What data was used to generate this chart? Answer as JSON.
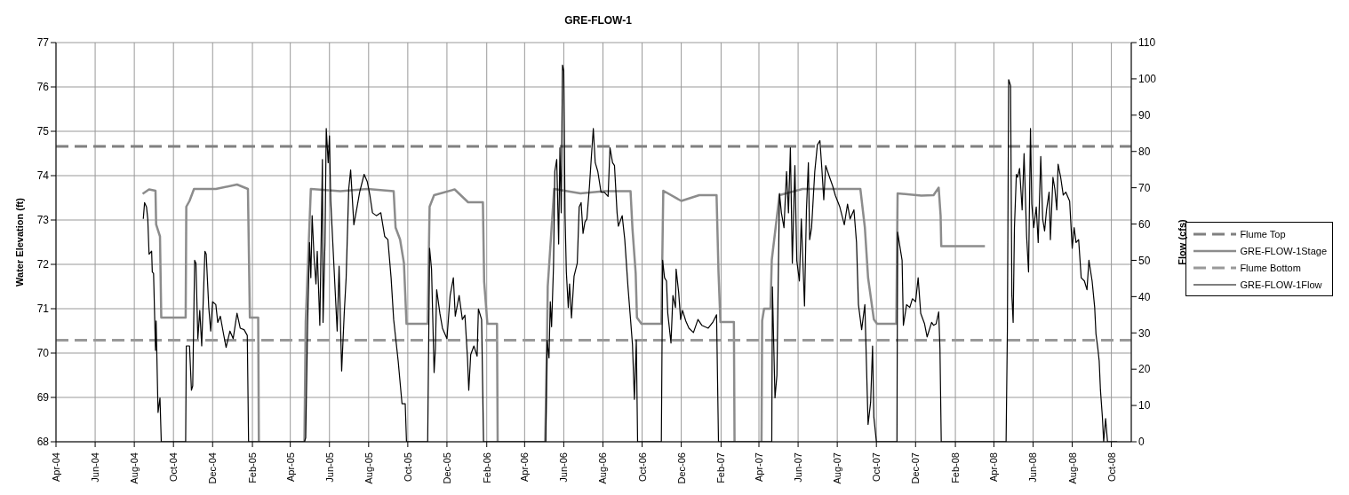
{
  "chart_data": {
    "type": "line",
    "title": "GRE-FLOW-1",
    "ylabel": "Water Elevation (ft)",
    "y2label": "Flow (cfs)",
    "xlim": [
      "2004-04-01",
      "2008-11-01"
    ],
    "xticks": [
      {
        "value": "2004-04",
        "label": "Apr-04"
      },
      {
        "value": "2004-06",
        "label": "Jun-04"
      },
      {
        "value": "2004-08",
        "label": "Aug-04"
      },
      {
        "value": "2004-10",
        "label": "Oct-04"
      },
      {
        "value": "2004-12",
        "label": "Dec-04"
      },
      {
        "value": "2005-02",
        "label": "Feb-05"
      },
      {
        "value": "2005-04",
        "label": "Apr-05"
      },
      {
        "value": "2005-06",
        "label": "Jun-05"
      },
      {
        "value": "2005-08",
        "label": "Aug-05"
      },
      {
        "value": "2005-10",
        "label": "Oct-05"
      },
      {
        "value": "2005-12",
        "label": "Dec-05"
      },
      {
        "value": "2006-02",
        "label": "Feb-06"
      },
      {
        "value": "2006-04",
        "label": "Apr-06"
      },
      {
        "value": "2006-06",
        "label": "Jun-06"
      },
      {
        "value": "2006-08",
        "label": "Aug-06"
      },
      {
        "value": "2006-10",
        "label": "Oct-06"
      },
      {
        "value": "2006-12",
        "label": "Dec-06"
      },
      {
        "value": "2007-02",
        "label": "Feb-07"
      },
      {
        "value": "2007-04",
        "label": "Apr-07"
      },
      {
        "value": "2007-06",
        "label": "Jun-07"
      },
      {
        "value": "2007-08",
        "label": "Aug-07"
      },
      {
        "value": "2007-10",
        "label": "Oct-07"
      },
      {
        "value": "2007-12",
        "label": "Dec-07"
      },
      {
        "value": "2008-02",
        "label": "Feb-08"
      },
      {
        "value": "2008-04",
        "label": "Apr-08"
      },
      {
        "value": "2008-06",
        "label": "Jun-08"
      },
      {
        "value": "2008-08",
        "label": "Aug-08"
      },
      {
        "value": "2008-10",
        "label": "Oct-08"
      }
    ],
    "ylim": [
      68,
      77
    ],
    "yticks": [
      68,
      69,
      70,
      71,
      72,
      73,
      74,
      75,
      76,
      77
    ],
    "y2lim": [
      0,
      110
    ],
    "y2ticks": [
      0,
      10,
      20,
      30,
      40,
      50,
      60,
      70,
      80,
      90,
      100,
      110
    ],
    "grid": true,
    "legend": "right",
    "marker": "none",
    "series": [
      {
        "name": "Flume Top",
        "color": "#808080",
        "line_style": "dashed",
        "x": [
          "2004-04-01",
          "2008-11-01"
        ],
        "values": [
          74.66,
          74.66
        ]
      },
      {
        "name": "GRE-FLOW-1Stage",
        "color": "#8c8c8c",
        "line_style": "solid",
        "x": [
          "2004-08-14",
          "2004-08-24",
          "2004-09-03",
          "2004-09-04",
          "2004-09-10",
          "2004-09-12",
          "2004-10-20",
          "2004-10-21",
          "2004-10-26",
          "2004-11-02",
          "2004-12-06",
          "2005-01-08",
          "2005-01-25",
          "2005-01-28",
          "2005-02-10",
          "2005-02-11",
          "2005-02-12",
          "2005-04-22",
          "2005-04-23",
          "2005-04-25",
          "2005-05-03",
          "2005-06-18",
          "2005-07-30",
          "2005-09-09",
          "2005-09-12",
          "2005-09-19",
          "2005-09-25",
          "2005-09-29",
          "2005-11-01",
          "2005-11-04",
          "2005-11-11",
          "2005-12-13",
          "2006-01-03",
          "2006-01-26",
          "2006-01-28",
          "2006-02-02",
          "2006-02-17",
          "2006-02-18",
          "2006-02-19",
          "2006-05-02",
          "2006-05-03",
          "2006-05-06",
          "2006-05-07",
          "2006-05-12",
          "2006-05-17",
          "2006-06-27",
          "2006-08-03",
          "2006-09-13",
          "2006-09-16",
          "2006-09-21",
          "2006-09-23",
          "2006-09-30",
          "2006-10-31",
          "2006-11-03",
          "2006-12-01",
          "2006-12-29",
          "2007-01-25",
          "2007-01-28",
          "2007-01-31",
          "2007-02-21",
          "2007-02-22",
          "2007-02-23",
          "2007-04-04",
          "2007-04-05",
          "2007-04-06",
          "2007-04-09",
          "2007-04-19",
          "2007-04-21",
          "2007-05-03",
          "2007-06-08",
          "2007-07-25",
          "2007-09-06",
          "2007-09-13",
          "2007-09-18",
          "2007-09-27",
          "2007-10-02",
          "2007-11-01",
          "2007-11-03",
          "2007-12-10",
          "2007-12-29",
          "2008-01-06",
          "2008-01-09",
          "2008-01-10",
          "2008-03-18"
        ],
        "values": [
          73.59,
          73.69,
          73.66,
          72.9,
          72.63,
          70.8,
          70.8,
          73.3,
          73.43,
          73.7,
          73.7,
          73.8,
          73.7,
          70.8,
          70.8,
          68,
          null,
          null,
          68,
          70.7,
          73.7,
          73.65,
          73.7,
          73.65,
          72.83,
          72.56,
          72.03,
          70.66,
          70.66,
          73.3,
          73.56,
          73.69,
          73.4,
          73.4,
          71.6,
          70.66,
          70.66,
          68,
          null,
          null,
          68,
          70.33,
          71.5,
          72.6,
          73.7,
          73.6,
          73.65,
          73.65,
          72.8,
          71.8,
          70.8,
          70.66,
          70.66,
          73.66,
          73.43,
          73.56,
          73.56,
          71.83,
          70.7,
          70.7,
          68,
          null,
          null,
          68,
          70.73,
          71.0,
          71.0,
          72.1,
          73.56,
          73.7,
          73.7,
          73.7,
          72.83,
          71.7,
          70.76,
          70.66,
          70.66,
          73.6,
          73.55,
          73.56,
          73.73,
          73.1,
          72.41,
          72.41
        ]
      },
      {
        "name": "Flume Bottom",
        "color": "#999999",
        "line_style": "dashed",
        "x": [
          "2004-04-01",
          "2008-11-01"
        ],
        "values": [
          70.29,
          70.29
        ]
      },
      {
        "name": "GRE-FLOW-1Flow",
        "color": "#000000",
        "line_style": "solid",
        "axis": "y2",
        "x": [
          "2004-08-15",
          "2004-08-17",
          "2004-08-20",
          "2004-08-22",
          "2004-08-24",
          "2004-08-28",
          "2004-08-29",
          "2004-08-31",
          "2004-09-03",
          "2004-09-04",
          "2004-09-07",
          "2004-09-10",
          "2004-09-12",
          "2004-10-20",
          "2004-10-21",
          "2004-10-26",
          "2004-10-29",
          "2004-10-31",
          "2004-11-03",
          "2004-11-05",
          "2004-11-08",
          "2004-11-11",
          "2004-11-14",
          "2004-11-19",
          "2004-11-21",
          "2004-11-25",
          "2004-11-28",
          "2004-12-01",
          "2004-12-06",
          "2004-12-09",
          "2004-12-13",
          "2004-12-18",
          "2004-12-22",
          "2004-12-28",
          "2005-01-02",
          "2005-01-08",
          "2005-01-13",
          "2005-01-19",
          "2005-01-24",
          "2005-01-26",
          "2005-04-23",
          "2005-04-25",
          "2005-04-28",
          "2005-05-01",
          "2005-05-03",
          "2005-05-05",
          "2005-05-08",
          "2005-05-11",
          "2005-05-13",
          "2005-05-17",
          "2005-05-21",
          "2005-05-22",
          "2005-05-25",
          "2005-05-27",
          "2005-05-30",
          "2005-06-01",
          "2005-06-03",
          "2005-06-08",
          "2005-06-13",
          "2005-06-16",
          "2005-06-20",
          "2005-06-24",
          "2005-06-27",
          "2005-07-01",
          "2005-07-04",
          "2005-07-09",
          "2005-07-14",
          "2005-07-18",
          "2005-07-25",
          "2005-07-30",
          "2005-08-03",
          "2005-08-07",
          "2005-08-13",
          "2005-08-20",
          "2005-08-26",
          "2005-08-31",
          "2005-09-05",
          "2005-09-09",
          "2005-09-16",
          "2005-09-22",
          "2005-09-27",
          "2005-09-29",
          "2005-11-01",
          "2005-11-04",
          "2005-11-07",
          "2005-11-11",
          "2005-11-13",
          "2005-11-15",
          "2005-11-20",
          "2005-11-24",
          "2005-12-01",
          "2005-12-06",
          "2005-12-11",
          "2005-12-14",
          "2005-12-20",
          "2005-12-25",
          "2005-12-29",
          "2006-01-02",
          "2006-01-04",
          "2006-01-07",
          "2006-01-12",
          "2006-01-17",
          "2006-01-19",
          "2006-01-24",
          "2006-01-27",
          "2006-05-04",
          "2006-05-06",
          "2006-05-09",
          "2006-05-11",
          "2006-05-13",
          "2006-05-16",
          "2006-05-18",
          "2006-05-21",
          "2006-05-24",
          "2006-05-26",
          "2006-05-28",
          "2006-05-30",
          "2006-06-01",
          "2006-06-03",
          "2006-06-05",
          "2006-06-08",
          "2006-06-10",
          "2006-06-13",
          "2006-06-17",
          "2006-06-22",
          "2006-06-25",
          "2006-06-28",
          "2006-07-01",
          "2006-07-04",
          "2006-07-07",
          "2006-07-11",
          "2006-07-14",
          "2006-07-17",
          "2006-07-20",
          "2006-07-24",
          "2006-07-29",
          "2006-08-03",
          "2006-08-09",
          "2006-08-12",
          "2006-08-16",
          "2006-08-19",
          "2006-08-23",
          "2006-08-25",
          "2006-08-31",
          "2006-09-04",
          "2006-09-09",
          "2006-09-13",
          "2006-09-16",
          "2006-09-19",
          "2006-09-22",
          "2006-09-24",
          "2006-10-31",
          "2006-11-02",
          "2006-11-05",
          "2006-11-08",
          "2006-11-10",
          "2006-11-15",
          "2006-11-18",
          "2006-11-22",
          "2006-11-23",
          "2006-11-27",
          "2006-11-30",
          "2006-12-03",
          "2006-12-08",
          "2006-12-13",
          "2006-12-20",
          "2006-12-27",
          "2007-01-02",
          "2007-01-12",
          "2007-01-19",
          "2007-01-25",
          "2007-01-28",
          "2007-04-21",
          "2007-04-22",
          "2007-04-26",
          "2007-04-29",
          "2007-05-03",
          "2007-05-06",
          "2007-05-10",
          "2007-05-14",
          "2007-05-17",
          "2007-05-20",
          "2007-05-23",
          "2007-05-27",
          "2007-05-30",
          "2007-06-03",
          "2007-06-06",
          "2007-06-11",
          "2007-06-14",
          "2007-06-17",
          "2007-06-19",
          "2007-06-22",
          "2007-06-27",
          "2007-07-01",
          "2007-07-05",
          "2007-07-08",
          "2007-07-11",
          "2007-07-14",
          "2007-07-20",
          "2007-07-25",
          "2007-07-29",
          "2007-08-05",
          "2007-08-12",
          "2007-08-17",
          "2007-08-21",
          "2007-08-27",
          "2007-08-31",
          "2007-09-03",
          "2007-09-08",
          "2007-09-13",
          "2007-09-18",
          "2007-09-22",
          "2007-09-25",
          "2007-09-27",
          "2007-10-01",
          "2007-11-02",
          "2007-11-03",
          "2007-11-07",
          "2007-11-10",
          "2007-11-12",
          "2007-11-17",
          "2007-11-22",
          "2007-11-26",
          "2007-12-01",
          "2007-12-05",
          "2007-12-09",
          "2007-12-15",
          "2007-12-19",
          "2007-12-26",
          "2007-12-29",
          "2008-01-02",
          "2008-01-06",
          "2008-01-08",
          "2008-01-10",
          "2008-04-20",
          "2008-04-22",
          "2008-04-24",
          "2008-04-27",
          "2008-04-29",
          "2008-05-01",
          "2008-05-03",
          "2008-05-06",
          "2008-05-08",
          "2008-05-11",
          "2008-05-15",
          "2008-05-18",
          "2008-05-22",
          "2008-05-25",
          "2008-05-28",
          "2008-05-30",
          "2008-06-02",
          "2008-06-06",
          "2008-06-09",
          "2008-06-13",
          "2008-06-16",
          "2008-06-19",
          "2008-06-22",
          "2008-06-26",
          "2008-06-28",
          "2008-07-02",
          "2008-07-05",
          "2008-07-08",
          "2008-07-10",
          "2008-07-14",
          "2008-07-18",
          "2008-07-22",
          "2008-07-28",
          "2008-08-01",
          "2008-08-04",
          "2008-08-07",
          "2008-08-11",
          "2008-08-15",
          "2008-08-20",
          "2008-08-24",
          "2008-08-27",
          "2008-09-01",
          "2008-09-05",
          "2008-09-07",
          "2008-09-10",
          "2008-09-12",
          "2008-09-14",
          "2008-09-17",
          "2008-09-19",
          "2008-09-22",
          "2008-09-25",
          "2008-10-10"
        ],
        "values": [
          61.4,
          65.9,
          64.7,
          61.4,
          51.7,
          52.5,
          46.8,
          46.4,
          25.2,
          33.3,
          8.1,
          12.1,
          0,
          0,
          26.4,
          26.4,
          14.2,
          15.4,
          50.0,
          49.2,
          28.4,
          36.2,
          26.4,
          52.5,
          51.7,
          37.0,
          30.5,
          38.6,
          37.8,
          32.9,
          34.6,
          29.7,
          26.0,
          30.5,
          28.4,
          35.4,
          31.3,
          30.9,
          29.3,
          0,
          0,
          1.1,
          32.9,
          54.9,
          45.2,
          62.3,
          50.9,
          43.5,
          52.5,
          32.1,
          77.8,
          32.9,
          54.9,
          86.3,
          76.9,
          84.3,
          66.3,
          48.4,
          30.5,
          48.4,
          19.5,
          35.4,
          45.2,
          69.6,
          74.9,
          59.8,
          64.7,
          68.8,
          73.7,
          71.6,
          67.9,
          63.1,
          62.3,
          63.1,
          56.6,
          55.7,
          45.2,
          33.7,
          22.3,
          10.5,
          10.5,
          0,
          0,
          53.3,
          47.6,
          19.1,
          25.6,
          41.9,
          35.4,
          31.3,
          28.4,
          40.3,
          45.2,
          34.6,
          40.3,
          33.7,
          34.9,
          23.1,
          14.2,
          24.0,
          26.4,
          23.6,
          36.6,
          33.7,
          0,
          0,
          28.0,
          23.1,
          38.6,
          31.7,
          48.4,
          74.5,
          77.8,
          54.5,
          81.0,
          63.1,
          103.8,
          102.2,
          62.3,
          46.8,
          37.0,
          43.5,
          34.1,
          45.6,
          49.2,
          64.7,
          65.9,
          57.4,
          60.6,
          61.4,
          70.4,
          78.6,
          86.3,
          76.9,
          74.5,
          68.8,
          68.8,
          67.6,
          81.0,
          76.9,
          76.1,
          63.1,
          59.4,
          62.3,
          55.7,
          42.7,
          33.7,
          26.8,
          11.7,
          28.0,
          0,
          0,
          50.0,
          45.2,
          44.3,
          35.4,
          27.2,
          40.3,
          37.0,
          47.6,
          41.1,
          33.7,
          36.2,
          33.3,
          31.3,
          30.1,
          33.7,
          32.1,
          31.3,
          32.9,
          35.0,
          0,
          0,
          42.7,
          12.1,
          18.3,
          68.4,
          63.1,
          59.0,
          74.5,
          63.1,
          81.0,
          49.2,
          76.1,
          49.9,
          44.3,
          61.4,
          37.4,
          63.9,
          76.9,
          55.7,
          59.0,
          74.5,
          81.8,
          83.0,
          75.3,
          66.7,
          76.1,
          72.9,
          70.4,
          67.9,
          64.7,
          59.8,
          65.5,
          61.4,
          63.9,
          54.9,
          37.8,
          30.9,
          37.8,
          4.8,
          10.9,
          26.4,
          6.8,
          0,
          0,
          57.8,
          53.3,
          50.0,
          32.1,
          37.8,
          37.0,
          39.4,
          38.6,
          45.2,
          35.4,
          32.5,
          28.9,
          32.9,
          32.1,
          32.5,
          35.8,
          25.6,
          0,
          0,
          30.5,
          99.8,
          98.1,
          40.3,
          32.9,
          59.0,
          73.7,
          72.9,
          75.3,
          63.9,
          79.4,
          56.6,
          46.8,
          86.3,
          65.5,
          59.0,
          64.7,
          54.9,
          78.6,
          61.4,
          58.1,
          63.9,
          68.8,
          55.7,
          72.9,
          69.6,
          63.9,
          76.5,
          72.9,
          68.0,
          68.8,
          66.3,
          53.3,
          59.0,
          54.9,
          55.7,
          45.2,
          44.3,
          41.9,
          50.0,
          44.3,
          37.0,
          29.7,
          25.6,
          22.3,
          14.2,
          6.8,
          0,
          6.4,
          0,
          0
        ]
      }
    ]
  }
}
